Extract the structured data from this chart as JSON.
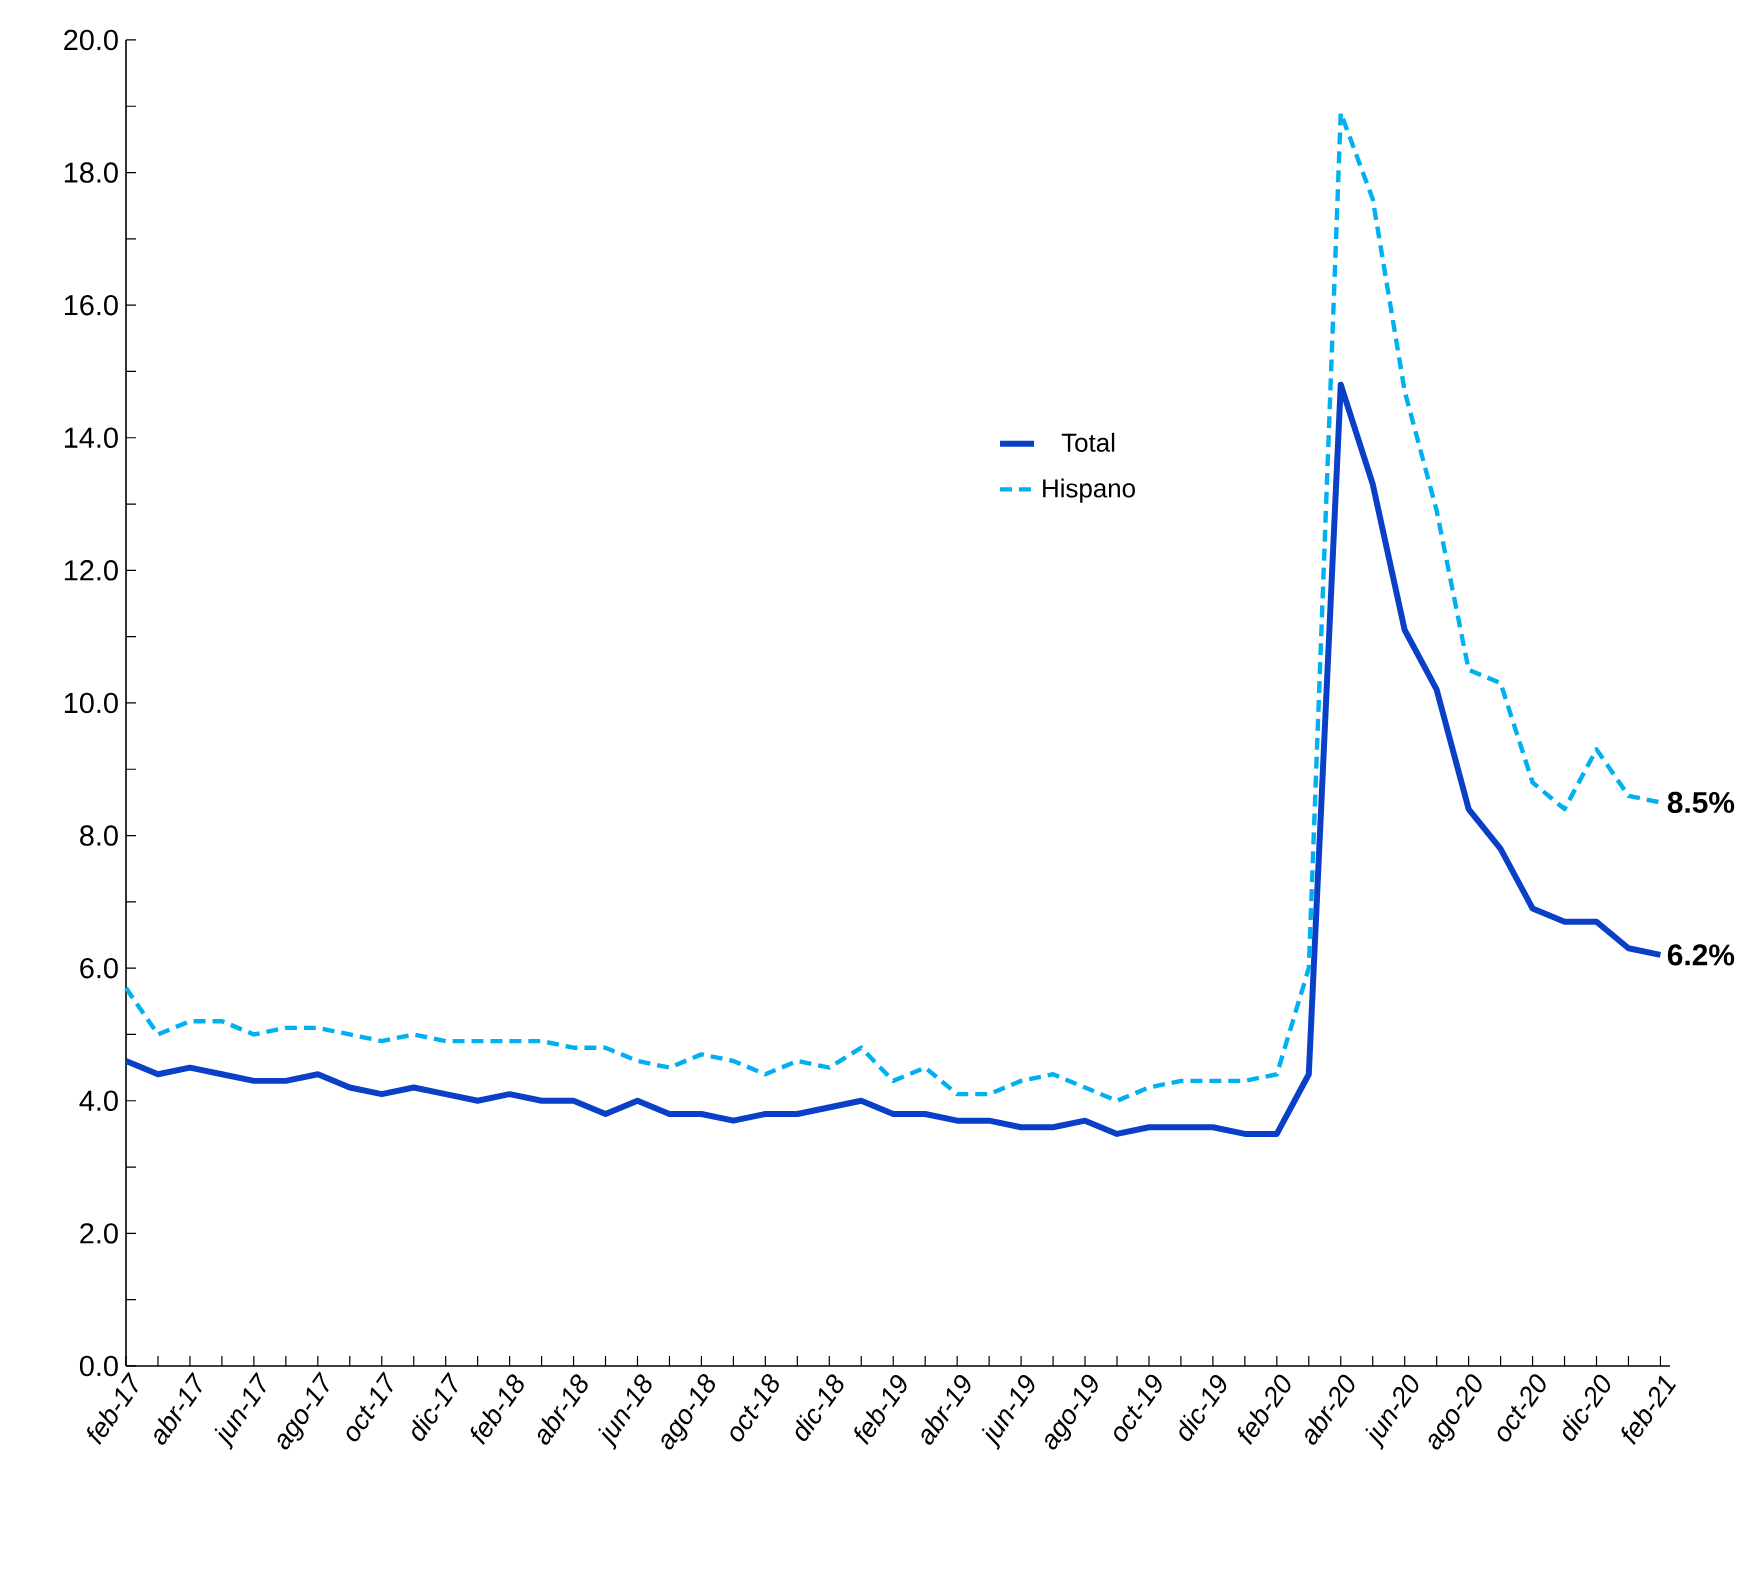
{
  "chart_data": {
    "type": "line",
    "categories": [
      "feb-17",
      null,
      "abr-17",
      null,
      "jun-17",
      null,
      "ago-17",
      null,
      "oct-17",
      null,
      "dic-17",
      null,
      "feb-18",
      null,
      "abr-18",
      null,
      "jun-18",
      null,
      "ago-18",
      null,
      "oct-18",
      null,
      "dic-18",
      null,
      "feb-19",
      null,
      "abr-19",
      null,
      "jun-19",
      null,
      "ago-19",
      null,
      "oct-19",
      null,
      "dic-19",
      null,
      "feb-20",
      null,
      "abr-20",
      null,
      "jun-20",
      null,
      "ago-20",
      null,
      "oct-20",
      null,
      "dic-20",
      null,
      "feb-21"
    ],
    "series": [
      {
        "name": "Total",
        "color": "#0a3fc8",
        "line_style": "solid",
        "values": [
          4.6,
          4.4,
          4.5,
          4.4,
          4.3,
          4.3,
          4.4,
          4.2,
          4.1,
          4.2,
          4.1,
          4.0,
          4.1,
          4.0,
          4.0,
          3.8,
          4.0,
          3.8,
          3.8,
          3.7,
          3.8,
          3.8,
          3.9,
          4.0,
          3.8,
          3.8,
          3.7,
          3.7,
          3.6,
          3.6,
          3.7,
          3.5,
          3.6,
          3.6,
          3.6,
          3.5,
          3.5,
          4.4,
          14.8,
          13.3,
          11.1,
          10.2,
          8.4,
          7.8,
          6.9,
          6.7,
          6.7,
          6.3,
          6.2
        ],
        "value_labels": [
          null,
          null,
          null,
          null,
          null,
          null,
          null,
          null,
          null,
          null,
          null,
          null,
          null,
          null,
          null,
          null,
          null,
          null,
          null,
          null,
          null,
          null,
          null,
          null,
          null,
          null,
          null,
          null,
          null,
          null,
          null,
          null,
          null,
          null,
          null,
          null,
          null,
          null,
          null,
          null,
          null,
          null,
          null,
          null,
          null,
          null,
          null,
          null,
          "6.2%"
        ]
      },
      {
        "name": "Hispano",
        "color": "#00b0f0",
        "line_style": "dashed",
        "values": [
          5.7,
          5.0,
          5.2,
          5.2,
          5.0,
          5.1,
          5.1,
          5.0,
          4.9,
          5.0,
          4.9,
          4.9,
          4.9,
          4.9,
          4.8,
          4.8,
          4.6,
          4.5,
          4.7,
          4.6,
          4.4,
          4.6,
          4.5,
          4.8,
          4.3,
          4.5,
          4.1,
          4.1,
          4.3,
          4.4,
          4.2,
          4.0,
          4.2,
          4.3,
          4.3,
          4.3,
          4.4,
          6.0,
          18.9,
          17.6,
          14.7,
          12.9,
          10.5,
          10.3,
          8.8,
          8.4,
          9.3,
          8.6,
          8.5
        ],
        "value_labels": [
          null,
          null,
          null,
          null,
          null,
          null,
          null,
          null,
          null,
          null,
          null,
          null,
          null,
          null,
          null,
          null,
          null,
          null,
          null,
          null,
          null,
          null,
          null,
          null,
          null,
          null,
          null,
          null,
          null,
          null,
          null,
          null,
          null,
          null,
          null,
          null,
          null,
          null,
          null,
          null,
          null,
          null,
          null,
          null,
          null,
          null,
          null,
          null,
          "8.5%"
        ]
      }
    ],
    "ylim": [
      0,
      20
    ],
    "yticks": [
      {
        "value": 0,
        "label": "0.0"
      },
      {
        "value": 1,
        "label": null
      },
      {
        "value": 2,
        "label": "2.0"
      },
      {
        "value": 3,
        "label": null
      },
      {
        "value": 4,
        "label": "4.0"
      },
      {
        "value": 5,
        "label": null
      },
      {
        "value": 6,
        "label": "6.0"
      },
      {
        "value": 7,
        "label": null
      },
      {
        "value": 8,
        "label": "8.0"
      },
      {
        "value": 9,
        "label": null
      },
      {
        "value": 10,
        "label": "10.0"
      },
      {
        "value": 11,
        "label": null
      },
      {
        "value": 12,
        "label": "12.0"
      },
      {
        "value": 13,
        "label": null
      },
      {
        "value": 14,
        "label": "14.0"
      },
      {
        "value": 15,
        "label": null
      },
      {
        "value": 16,
        "label": "16.0"
      },
      {
        "value": 17,
        "label": null
      },
      {
        "value": 18,
        "label": "18.0"
      },
      {
        "value": 19,
        "label": null
      },
      {
        "value": 20,
        "label": "20.0"
      }
    ],
    "legend": "top",
    "grid": false
  }
}
